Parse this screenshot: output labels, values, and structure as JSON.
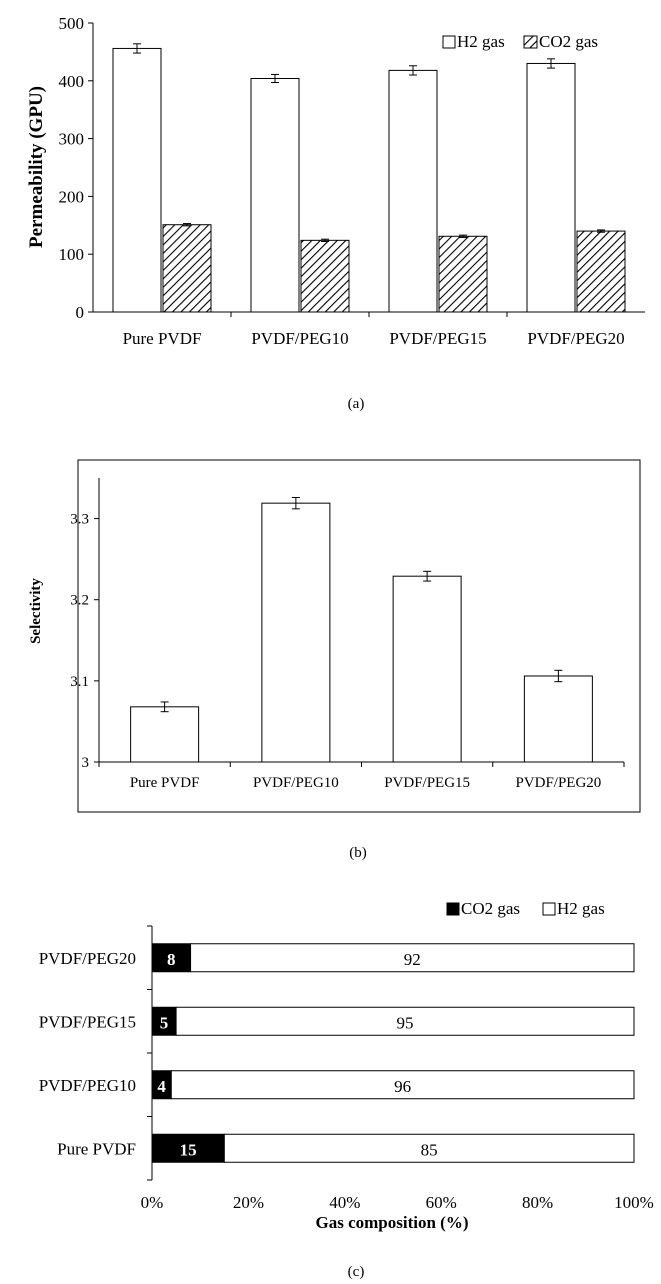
{
  "chart_data": [
    {
      "type": "bar",
      "panel_label": "(a)",
      "ylabel": "Permeability (GPU)",
      "ylim": [
        0,
        500
      ],
      "yticks": [
        0,
        100,
        200,
        300,
        400,
        500
      ],
      "categories": [
        "Pure PVDF",
        "PVDF/PEG10",
        "PVDF/PEG15",
        "PVDF/PEG20"
      ],
      "series": [
        {
          "name": "H2 gas",
          "values": [
            456,
            404,
            418,
            430
          ],
          "errors": [
            8,
            7,
            8,
            8
          ],
          "fill": "white"
        },
        {
          "name": "CO2 gas",
          "values": [
            151,
            124,
            131,
            140
          ],
          "errors": [
            2,
            2,
            2,
            2
          ],
          "fill": "hatch"
        }
      ],
      "legend": "top-right",
      "grid": false
    },
    {
      "type": "bar",
      "panel_label": "(b)",
      "ylabel": "Selectivity",
      "ylim": [
        3,
        3.35
      ],
      "yticks": [
        3,
        3.1,
        3.2,
        3.3
      ],
      "ytick_labels": [
        "3",
        "3.1",
        "3.2",
        "3.3"
      ],
      "categories": [
        "Pure PVDF",
        "PVDF/PEG10",
        "PVDF/PEG15",
        "PVDF/PEG20"
      ],
      "values": [
        3.068,
        3.319,
        3.229,
        3.106
      ],
      "errors": [
        0.006,
        0.007,
        0.006,
        0.007
      ],
      "grid": false
    },
    {
      "type": "bar",
      "orientation": "horizontal",
      "stacked": true,
      "percent": true,
      "panel_label": "(c)",
      "xlabel": "Gas composition (%)",
      "xticks": [
        "0%",
        "20%",
        "40%",
        "60%",
        "80%",
        "100%"
      ],
      "categories": [
        "Pure PVDF",
        "PVDF/PEG10",
        "PVDF/PEG15",
        "PVDF/PEG20"
      ],
      "series": [
        {
          "name": "CO2 gas",
          "values": [
            15,
            4,
            5,
            8
          ],
          "color": "#000000"
        },
        {
          "name": "H2 gas",
          "values": [
            85,
            96,
            95,
            92
          ],
          "color": "#ffffff"
        }
      ],
      "legend": "top-right",
      "grid": false
    }
  ]
}
